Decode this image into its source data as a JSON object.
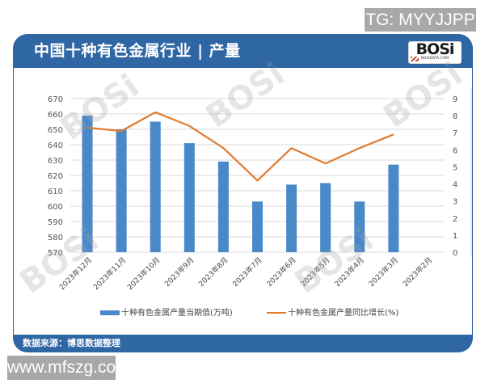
{
  "badges": {
    "top_right": "TG: MYYJJPP",
    "bottom_left": "www.mfszg.com"
  },
  "header": {
    "title": "中国十种有色金属行业 | 产量",
    "logo_text": "BOSi",
    "logo_subtext": "BOSIDATA.COM"
  },
  "footer": {
    "source": "数据来源：博思数据整理"
  },
  "colors": {
    "frame_blue": "#2f66a4",
    "bar_blue": "#4a89c8",
    "line_orange": "#e07b2e",
    "grid": "#d9d9d9"
  },
  "legend": {
    "bar_label": "十种有色金属产量当期值(万吨)",
    "line_label": "十种有色金属产量同比增长(%)"
  },
  "left_axis_ticks": [
    "670",
    "660",
    "650",
    "640",
    "630",
    "620",
    "610",
    "600",
    "590",
    "580",
    "570"
  ],
  "right_axis_ticks": [
    "9",
    "8",
    "7",
    "6",
    "5",
    "4",
    "3",
    "2",
    "1",
    "0"
  ],
  "chart_data": {
    "type": "bar",
    "title": "中国十种有色金属行业 | 产量",
    "categories": [
      "2023年12月",
      "2023年11月",
      "2023年10月",
      "2023年9月",
      "2023年8月",
      "2023年7月",
      "2023年6月",
      "2023年5月",
      "2023年4月",
      "2023年3月",
      "2023年2月"
    ],
    "series": [
      {
        "name": "十种有色金属产量当期值(万吨)",
        "type": "bar",
        "axis": "left",
        "values": [
          659,
          650,
          655,
          641,
          629,
          603,
          614,
          615,
          603,
          627,
          null
        ]
      },
      {
        "name": "十种有色金属产量同比增长(%)",
        "type": "line",
        "axis": "right",
        "values": [
          7.3,
          7.1,
          8.2,
          7.4,
          6.1,
          4.2,
          6.1,
          5.2,
          6.1,
          6.9,
          null
        ]
      }
    ],
    "xlabel": "",
    "ylabel_left": "万吨",
    "ylabel_right": "%",
    "ylim_left": [
      570,
      670
    ],
    "ylim_right": [
      0,
      9
    ],
    "grid": true,
    "legend_position": "bottom",
    "source": "数据来源：博思数据整理"
  }
}
